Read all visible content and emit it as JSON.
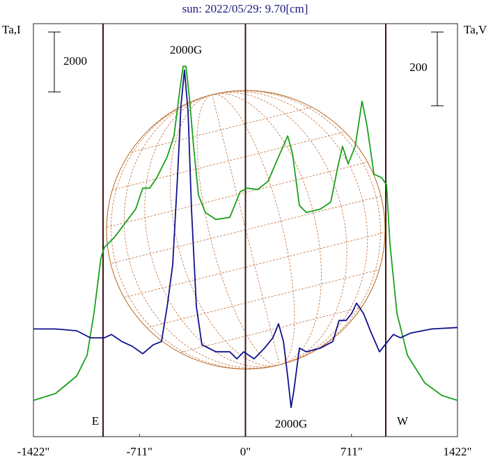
{
  "chart_data": {
    "type": "line",
    "title": "sun: 2022/05/29: 9.70[cm]",
    "y_label": "Ta,I",
    "y2_label": "Ta,V",
    "xlim": [
      -1422,
      1422
    ],
    "xticks": [
      {
        "value": -1422,
        "label": "-1422\""
      },
      {
        "value": -711,
        "label": "-711\""
      },
      {
        "value": 0,
        "label": "0\""
      },
      {
        "value": 711,
        "label": "711\""
      },
      {
        "value": 1422,
        "label": "1422\""
      }
    ],
    "ylim": [
      0,
      13800
    ],
    "y2lim": [
      -300,
      820
    ],
    "y_scale_bar": 2000,
    "y2_scale_bar": 200,
    "vlines": [
      -955,
      0,
      941
    ],
    "annotations": [
      "2000G",
      "2000G",
      "E",
      "W"
    ],
    "series": [
      {
        "name": "Ta,I",
        "color": "#1aa01a",
        "x": [
          -1422,
          -1273,
          -1132,
          -1062,
          -1016,
          -969,
          -946,
          -876,
          -806,
          -736,
          -689,
          -642,
          -595,
          -525,
          -479,
          -441,
          -418,
          -399,
          -376,
          -348,
          -315,
          -269,
          -198,
          -105,
          -35,
          12,
          82,
          152,
          222,
          283,
          315,
          362,
          409,
          502,
          572,
          619,
          651,
          689,
          736,
          782,
          815,
          862,
          913,
          946,
          969,
          1016,
          1086,
          1203,
          1319,
          1422
        ],
        "values": [
          1210,
          1442,
          2024,
          2721,
          4117,
          5978,
          6327,
          6676,
          7141,
          7606,
          8304,
          8304,
          8653,
          9351,
          10048,
          11560,
          12374,
          12374,
          11328,
          9699,
          8071,
          7490,
          7257,
          7327,
          8188,
          8304,
          8257,
          8536,
          9351,
          10048,
          9467,
          7722,
          7490,
          7606,
          7839,
          9002,
          9699,
          9118,
          9699,
          11211,
          10397,
          8769,
          8653,
          8420,
          6443,
          4117,
          2721,
          1791,
          1372,
          1210
        ]
      },
      {
        "name": "Ta,V",
        "color": "#10108c",
        "axis": "y2",
        "x": [
          -1422,
          -1273,
          -1132,
          -1039,
          -946,
          -899,
          -829,
          -759,
          -689,
          -619,
          -563,
          -525,
          -488,
          -455,
          -432,
          -409,
          -385,
          -362,
          -329,
          -292,
          -198,
          -105,
          -58,
          -12,
          58,
          128,
          184,
          222,
          255,
          283,
          306,
          325,
          362,
          409,
          502,
          586,
          628,
          675,
          712,
          745,
          792,
          838,
          899,
          936,
          992,
          1039,
          1109,
          1249,
          1422
        ],
        "values": [
          -8,
          -8,
          -13,
          -32,
          -32,
          -23,
          -42,
          -55,
          -75,
          -51,
          -42,
          53,
          166,
          411,
          600,
          694,
          581,
          317,
          53,
          -51,
          -70,
          -70,
          -89,
          -70,
          -89,
          -60,
          -32,
          6,
          -42,
          -136,
          -221,
          -174,
          -60,
          -70,
          -60,
          -42,
          15,
          15,
          34,
          62,
          34,
          -13,
          -70,
          -51,
          -23,
          -32,
          -19,
          -8,
          -4
        ]
      }
    ]
  }
}
